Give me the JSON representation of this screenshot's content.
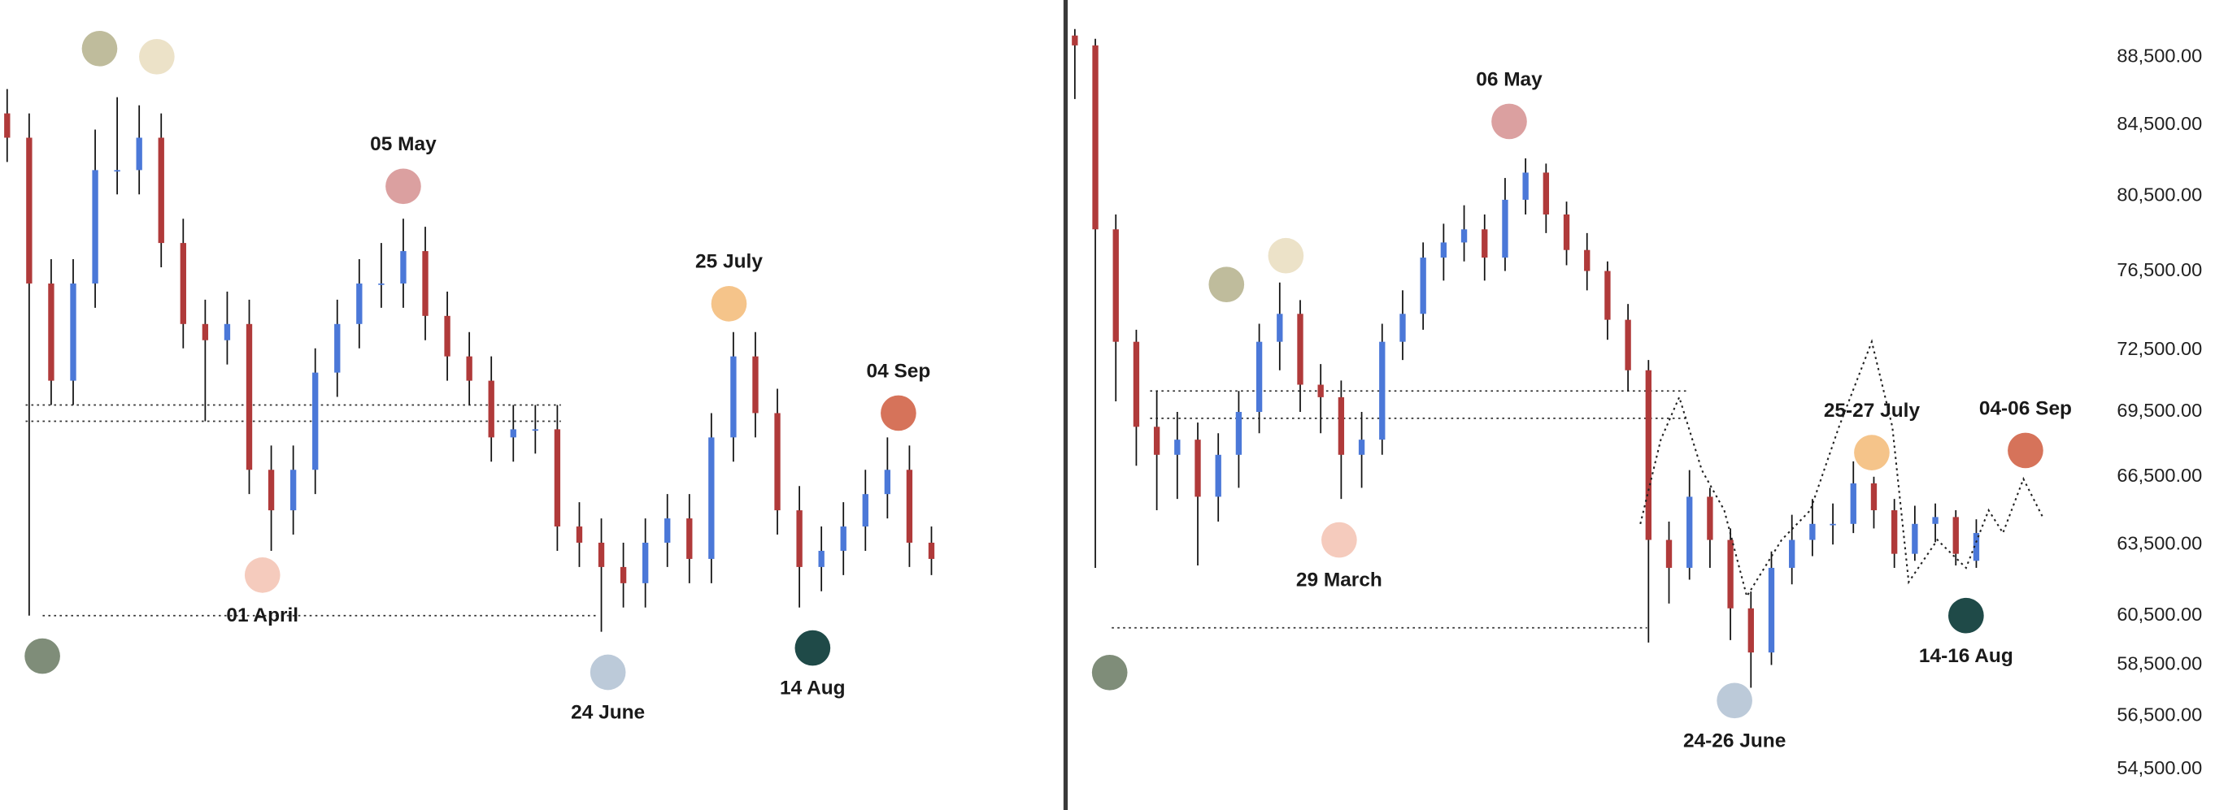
{
  "chart_data": [
    {
      "type": "candlestick",
      "ylim": [
        0,
        100
      ],
      "up_color": "#4b78d8",
      "down_color": "#b03a3a",
      "open": [
        86,
        83,
        65,
        53,
        65,
        79,
        79,
        83,
        70,
        60,
        58,
        60,
        42,
        37,
        42,
        54,
        60,
        65,
        65,
        69,
        61,
        56,
        53,
        46,
        47,
        47,
        35,
        33,
        30,
        28,
        33,
        36,
        31,
        46,
        56,
        49,
        37,
        30,
        32,
        35,
        39,
        42,
        33
      ],
      "high": [
        89,
        86,
        68,
        68,
        84,
        88,
        87,
        86,
        73,
        63,
        64,
        63,
        45,
        45,
        57,
        63,
        68,
        70,
        73,
        72,
        64,
        59,
        56,
        50,
        50,
        50,
        38,
        36,
        33,
        36,
        39,
        39,
        49,
        59,
        59,
        52,
        40,
        35,
        38,
        42,
        46,
        45,
        35
      ],
      "low": [
        80,
        24,
        50,
        50,
        62,
        76,
        76,
        67,
        57,
        48,
        55,
        39,
        32,
        34,
        39,
        51,
        57,
        62,
        62,
        58,
        53,
        50,
        43,
        43,
        44,
        32,
        30,
        22,
        25,
        25,
        30,
        28,
        28,
        43,
        46,
        34,
        25,
        27,
        29,
        32,
        36,
        30,
        29
      ],
      "close": [
        83,
        65,
        53,
        65,
        79,
        79,
        83,
        70,
        60,
        58,
        60,
        42,
        37,
        42,
        54,
        60,
        65,
        65,
        69,
        61,
        56,
        53,
        46,
        47,
        47,
        35,
        33,
        30,
        28,
        33,
        36,
        31,
        46,
        56,
        49,
        37,
        30,
        32,
        35,
        39,
        42,
        33,
        31
      ],
      "levels": [
        50,
        48,
        24
      ],
      "annotations": [
        {
          "color": "#bfbc9c",
          "x": 4.2,
          "y": 94
        },
        {
          "color": "#ece2c8",
          "x": 6.8,
          "y": 93
        },
        {
          "label": "05 May",
          "label_position": "above",
          "color": "#dba0a0",
          "x": 18,
          "y": 77
        },
        {
          "label": "01 April",
          "label_position": "below",
          "color": "#f5cbbd",
          "x": 11.6,
          "y": 29
        },
        {
          "label": "25 July",
          "label_position": "above",
          "color": "#f5c48a",
          "x": 32.8,
          "y": 62.5
        },
        {
          "label": "04 Sep",
          "label_position": "above",
          "color": "#d6735a",
          "x": 40.5,
          "y": 49
        },
        {
          "color": "#7f8d79",
          "x": 1.6,
          "y": 19
        },
        {
          "label": "24 June",
          "label_position": "below",
          "color": "#bccad9",
          "x": 27.3,
          "y": 17
        },
        {
          "label": "14 Aug",
          "label_position": "below",
          "color": "#1f4a48",
          "x": 36.6,
          "y": 20
        }
      ]
    },
    {
      "type": "candlestick",
      "log_scale": true,
      "ylim": [
        53000,
        92000
      ],
      "yticks": [
        {
          "value": 88500,
          "label": "88,500.00"
        },
        {
          "value": 84500,
          "label": "84,500.00"
        },
        {
          "value": 80500,
          "label": "80,500.00"
        },
        {
          "value": 76500,
          "label": "76,500.00"
        },
        {
          "value": 72500,
          "label": "72,500.00"
        },
        {
          "value": 69500,
          "label": "69,500.00"
        },
        {
          "value": 66500,
          "label": "66,500.00"
        },
        {
          "value": 63500,
          "label": "63,500.00"
        },
        {
          "value": 60500,
          "label": "60,500.00"
        },
        {
          "value": 58500,
          "label": "58,500.00"
        },
        {
          "value": 56500,
          "label": "56,500.00"
        },
        {
          "value": 54500,
          "label": "54,500.00"
        }
      ],
      "up_color": "#4b78d8",
      "down_color": "#b03a3a",
      "open": [
        89800,
        89200,
        78700,
        72900,
        68800,
        67500,
        68200,
        65600,
        67500,
        69500,
        72900,
        74300,
        70800,
        70200,
        67500,
        68200,
        72900,
        74300,
        77200,
        78000,
        78700,
        77200,
        80300,
        81800,
        79500,
        77600,
        76500,
        74000,
        71500,
        63700,
        62500,
        65600,
        63700,
        60800,
        59000,
        62500,
        63700,
        64400,
        64400,
        66200,
        65000,
        63100,
        64400,
        64700,
        62800
      ],
      "high": [
        90200,
        89600,
        79500,
        73500,
        70500,
        69500,
        69000,
        68500,
        70500,
        73800,
        75900,
        75000,
        71800,
        71000,
        69500,
        73800,
        75500,
        78000,
        79000,
        80000,
        79500,
        81500,
        82600,
        82300,
        80200,
        78500,
        77000,
        74800,
        72000,
        64500,
        66800,
        66000,
        64200,
        61500,
        63200,
        64800,
        65500,
        65300,
        67200,
        66500,
        65500,
        65200,
        65300,
        65000,
        64600
      ],
      "low": [
        86000,
        62500,
        70000,
        67000,
        65000,
        65500,
        62600,
        64500,
        66000,
        68500,
        71500,
        69500,
        68500,
        65500,
        66000,
        67500,
        72000,
        73500,
        76000,
        77000,
        76000,
        76500,
        79500,
        78500,
        76800,
        75500,
        73000,
        70500,
        59400,
        61000,
        62000,
        62500,
        59500,
        57600,
        58500,
        61800,
        63000,
        63500,
        64000,
        64200,
        62500,
        62800,
        63600,
        62600,
        62500
      ],
      "close": [
        89200,
        78700,
        72900,
        68800,
        67500,
        68200,
        65600,
        67500,
        69500,
        72900,
        74300,
        70800,
        70200,
        67500,
        68200,
        72900,
        74300,
        77200,
        78000,
        78700,
        77200,
        80300,
        81800,
        79500,
        77600,
        76500,
        74000,
        71500,
        63700,
        62500,
        65600,
        63700,
        60800,
        59000,
        62500,
        63700,
        64400,
        64400,
        66200,
        65000,
        63100,
        64400,
        64700,
        63100,
        64000
      ],
      "levels": [
        70500,
        69200,
        60000
      ],
      "projection": {
        "x": [
          27.6,
          28.6,
          29.5,
          30.6,
          31.7,
          32.8,
          34.5,
          35.9,
          37.3,
          38.9,
          39.9,
          40.7,
          42.1,
          43.5,
          44.6,
          45.3,
          46.3,
          47.3
        ],
        "y": [
          64400,
          68200,
          70200,
          66800,
          65000,
          61300,
          63700,
          65000,
          68800,
          72900,
          68800,
          61900,
          63700,
          62500,
          65000,
          64000,
          66400,
          64600
        ]
      },
      "annotations": [
        {
          "color": "#bfbc9c",
          "x": 7.4,
          "y": 75800
        },
        {
          "color": "#ece2c8",
          "x": 10.3,
          "y": 77300
        },
        {
          "label": "06 May",
          "label_position": "above",
          "color": "#dba0a0",
          "x": 21.2,
          "y": 84700
        },
        {
          "label": "29 March",
          "label_position": "below",
          "color": "#f5cbbd",
          "x": 12.9,
          "y": 63700
        },
        {
          "label": "25-27 July",
          "label_position": "above",
          "color": "#f5c48a",
          "x": 38.9,
          "y": 67600
        },
        {
          "label": "04-06 Sep",
          "label_position": "above",
          "color": "#d6735a",
          "x": 46.4,
          "y": 67700
        },
        {
          "color": "#7f8d79",
          "x": 1.7,
          "y": 58200
        },
        {
          "label": "24-26 June",
          "label_position": "below",
          "color": "#bccad9",
          "x": 32.2,
          "y": 57100
        },
        {
          "label": "14-16 Aug",
          "label_position": "below",
          "color": "#1f4a48",
          "x": 43.5,
          "y": 60500
        }
      ]
    }
  ]
}
